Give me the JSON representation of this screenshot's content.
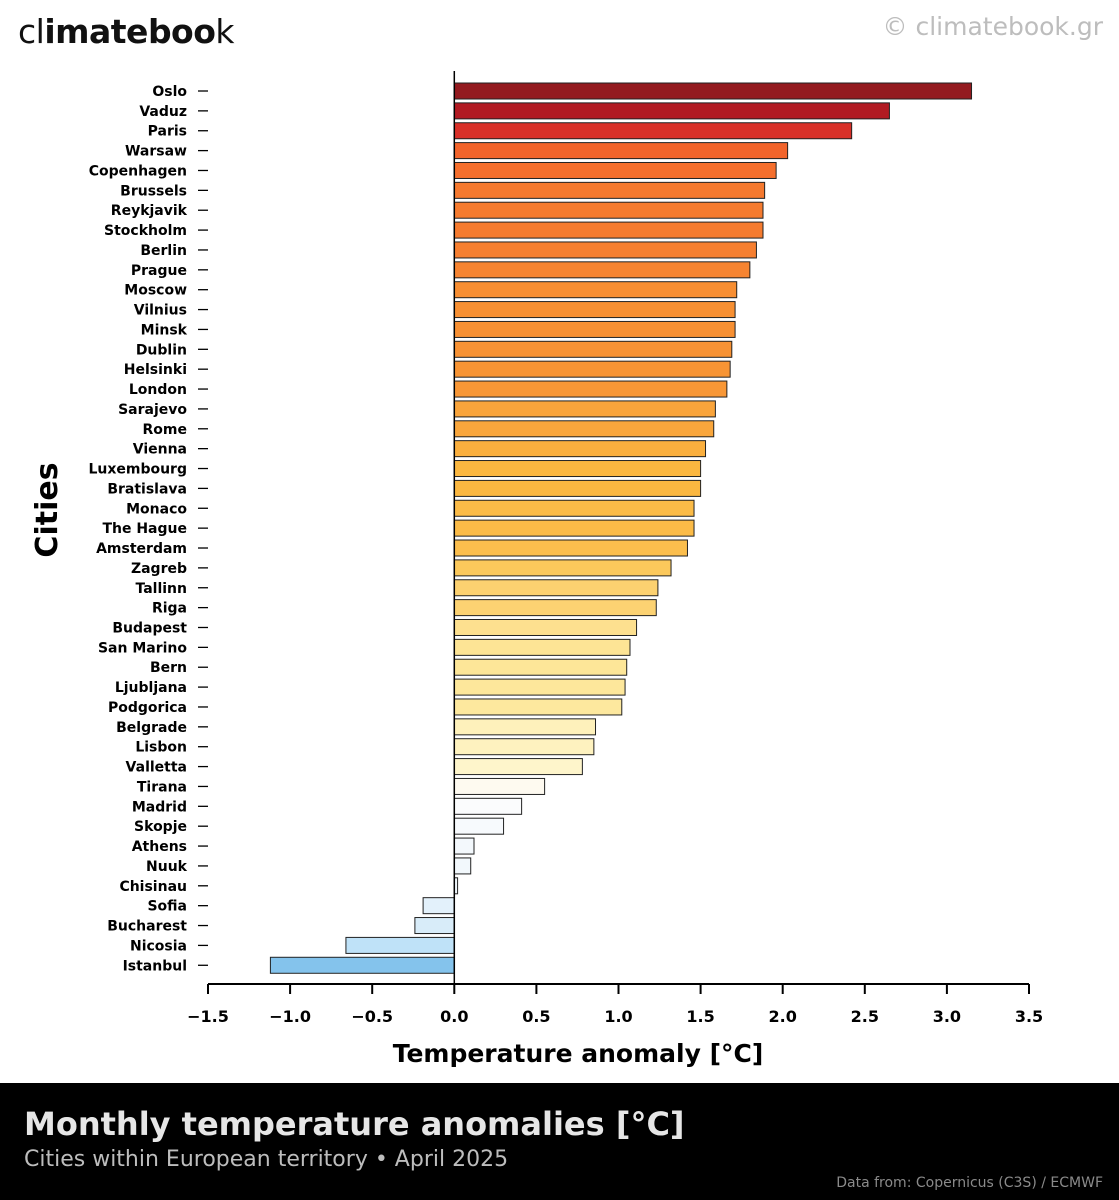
{
  "brand": {
    "prefix": "cl",
    "bold_a": "imate",
    "bold_b": "boo",
    "suffix": "k"
  },
  "copyright": "© climatebook.gr",
  "footer": {
    "title": "Monthly temperature anomalies [°C]",
    "subtitle": "Cities within European territory • April 2025",
    "source": "Data from: Copernicus (C3S) / ECMWF"
  },
  "chart_data": {
    "type": "bar",
    "orientation": "horizontal",
    "xlabel": "Temperature anomaly [°C]",
    "ylabel": "Cities",
    "xlim": [
      -1.5,
      3.5
    ],
    "xticks": [
      "−1.5",
      "−1.0",
      "−0.5",
      "0.0",
      "0.5",
      "1.0",
      "1.5",
      "2.0",
      "2.5",
      "3.0",
      "3.5"
    ],
    "xtick_values": [
      -1.5,
      -1.0,
      -0.5,
      0.0,
      0.5,
      1.0,
      1.5,
      2.0,
      2.5,
      3.0,
      3.5
    ],
    "grid": false,
    "categories": [
      "Oslo",
      "Vaduz",
      "Paris",
      "Warsaw",
      "Copenhagen",
      "Brussels",
      "Reykjavik",
      "Stockholm",
      "Berlin",
      "Prague",
      "Moscow",
      "Vilnius",
      "Minsk",
      "Dublin",
      "Helsinki",
      "London",
      "Sarajevo",
      "Rome",
      "Vienna",
      "Luxembourg",
      "Bratislava",
      "Monaco",
      "The Hague",
      "Amsterdam",
      "Zagreb",
      "Tallinn",
      "Riga",
      "Budapest",
      "San Marino",
      "Bern",
      "Ljubljana",
      "Podgorica",
      "Belgrade",
      "Lisbon",
      "Valletta",
      "Tirana",
      "Madrid",
      "Skopje",
      "Athens",
      "Nuuk",
      "Chisinau",
      "Sofia",
      "Bucharest",
      "Nicosia",
      "Istanbul"
    ],
    "values": [
      3.15,
      2.65,
      2.42,
      2.03,
      1.96,
      1.89,
      1.88,
      1.88,
      1.84,
      1.8,
      1.72,
      1.71,
      1.71,
      1.69,
      1.68,
      1.66,
      1.59,
      1.58,
      1.53,
      1.5,
      1.5,
      1.46,
      1.46,
      1.42,
      1.32,
      1.24,
      1.23,
      1.11,
      1.07,
      1.05,
      1.04,
      1.02,
      0.86,
      0.85,
      0.78,
      0.55,
      0.41,
      0.3,
      0.12,
      0.1,
      0.02,
      -0.19,
      -0.24,
      -0.66,
      -1.12
    ],
    "colors": [
      "#931a1f",
      "#b11a22",
      "#d83028",
      "#f2642b",
      "#f56f2d",
      "#f5792f",
      "#f57b2f",
      "#f57b2f",
      "#f67f30",
      "#f68431",
      "#f78e32",
      "#f79033",
      "#f79033",
      "#f79234",
      "#f79434",
      "#f89736",
      "#f9a43b",
      "#f9a63c",
      "#faaf3e",
      "#fbb740",
      "#fbb740",
      "#fbbb47",
      "#fbbb47",
      "#fbbe4d",
      "#fbc85b",
      "#fcd170",
      "#fcd272",
      "#fde08f",
      "#fde495",
      "#fde698",
      "#fde79b",
      "#fde89e",
      "#fef1bb",
      "#fef2bf",
      "#fef5cb",
      "#fefaf0",
      "#fbfcfd",
      "#f7fafd",
      "#f3f8fc",
      "#f2f8fc",
      "#eff6fb",
      "#e3f1fb",
      "#d8ecf9",
      "#bfe2f8",
      "#84c3ec"
    ]
  }
}
